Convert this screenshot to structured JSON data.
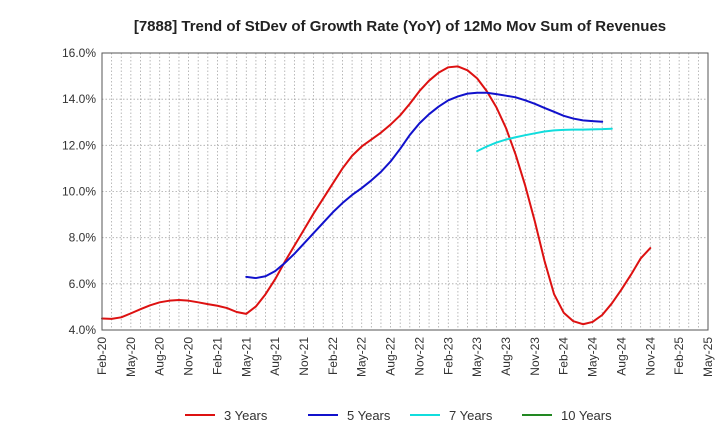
{
  "chart_data": {
    "type": "line",
    "title": "[7888]  Trend of StDev of Growth Rate (YoY) of 12Mo Mov Sum of Revenues",
    "xlabel": "",
    "ylabel": "",
    "ylim": [
      4.0,
      16.0
    ],
    "yticks": [
      4.0,
      6.0,
      8.0,
      10.0,
      12.0,
      14.0,
      16.0
    ],
    "ytick_labels": [
      "4.0%",
      "6.0%",
      "8.0%",
      "10.0%",
      "12.0%",
      "14.0%",
      "16.0%"
    ],
    "x_start": "Feb-20",
    "x_end": "May-25",
    "x_tick_labels": [
      "Feb-20",
      "May-20",
      "Aug-20",
      "Nov-20",
      "Feb-21",
      "May-21",
      "Aug-21",
      "Nov-21",
      "Feb-22",
      "May-22",
      "Aug-22",
      "Nov-22",
      "Feb-23",
      "May-23",
      "Aug-23",
      "Nov-23",
      "Feb-24",
      "May-24",
      "Aug-24",
      "Nov-24",
      "Feb-25",
      "May-25"
    ],
    "grid": true,
    "legend_position": "bottom",
    "series": [
      {
        "name": "3 Years",
        "color": "#dd1111",
        "start_index": 0,
        "values": [
          4.5,
          4.48,
          4.55,
          4.72,
          4.9,
          5.07,
          5.2,
          5.27,
          5.3,
          5.27,
          5.2,
          5.12,
          5.05,
          4.95,
          4.78,
          4.7,
          5.02,
          5.55,
          6.2,
          6.95,
          7.65,
          8.35,
          9.05,
          9.7,
          10.35,
          11.0,
          11.55,
          11.95,
          12.25,
          12.55,
          12.9,
          13.3,
          13.8,
          14.35,
          14.8,
          15.15,
          15.38,
          15.42,
          15.25,
          14.9,
          14.35,
          13.65,
          12.75,
          11.6,
          10.25,
          8.7,
          7.0,
          5.55,
          4.75,
          4.38,
          4.25,
          4.35,
          4.65,
          5.15,
          5.75,
          6.4,
          7.1,
          7.55
        ]
      },
      {
        "name": "5 Years",
        "color": "#1111cc",
        "start_index": 15,
        "values": [
          6.3,
          6.25,
          6.33,
          6.55,
          6.9,
          7.3,
          7.75,
          8.2,
          8.65,
          9.1,
          9.5,
          9.85,
          10.15,
          10.48,
          10.85,
          11.3,
          11.85,
          12.45,
          12.95,
          13.35,
          13.68,
          13.95,
          14.12,
          14.24,
          14.28,
          14.28,
          14.22,
          14.15,
          14.08,
          13.95,
          13.8,
          13.62,
          13.45,
          13.28,
          13.16,
          13.08,
          13.05,
          13.02
        ]
      },
      {
        "name": "7 Years",
        "color": "#11dddd",
        "start_index": 39,
        "values": [
          11.75,
          11.95,
          12.12,
          12.25,
          12.35,
          12.44,
          12.52,
          12.6,
          12.65,
          12.67,
          12.68,
          12.68,
          12.69,
          12.7,
          12.72
        ]
      },
      {
        "name": "10 Years",
        "color": "#228822",
        "start_index": 0,
        "values": []
      }
    ]
  }
}
